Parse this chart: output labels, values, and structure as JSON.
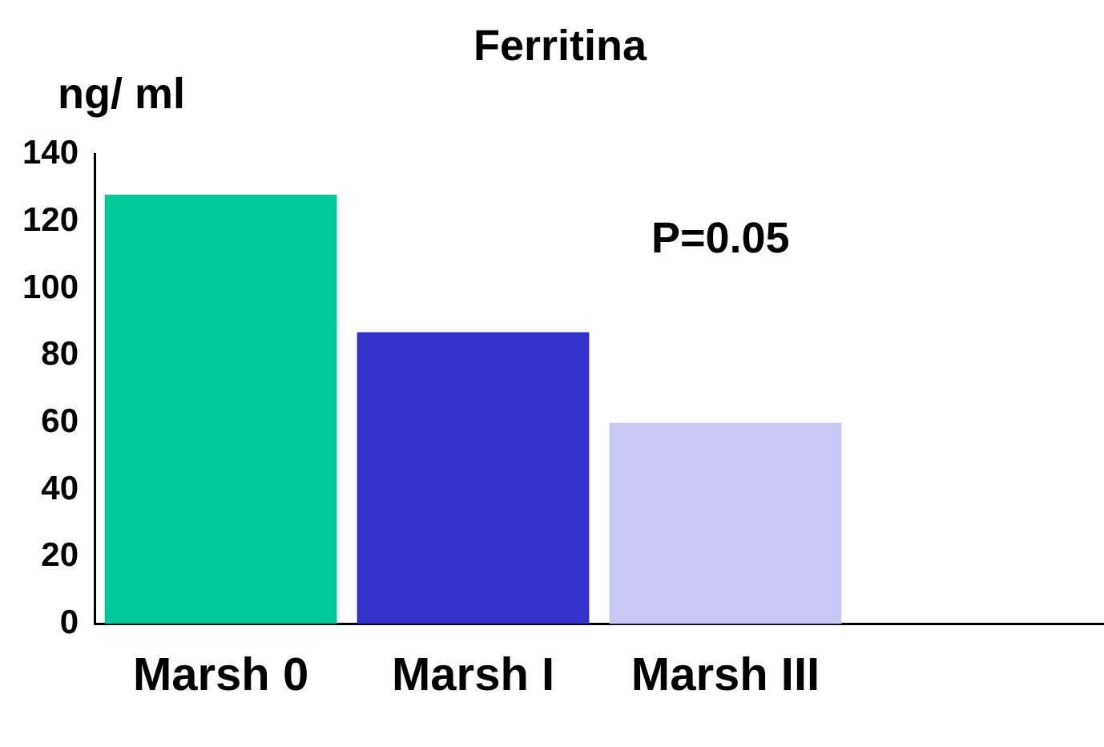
{
  "chart_data": {
    "type": "bar",
    "title": "Ferritina",
    "ylabel": "ng/ ml",
    "categories": [
      "Marsh 0",
      "Marsh I",
      "Marsh III",
      null
    ],
    "values": [
      128,
      87,
      60,
      null
    ],
    "colors": [
      "#00c896",
      "#3333cc",
      "#c8c8f4",
      null
    ],
    "ylim": [
      0,
      140
    ],
    "yticks": [
      0,
      20,
      40,
      60,
      80,
      100,
      120,
      140
    ],
    "grid": false,
    "legend": false,
    "annotations": [
      "P=0.05"
    ]
  }
}
